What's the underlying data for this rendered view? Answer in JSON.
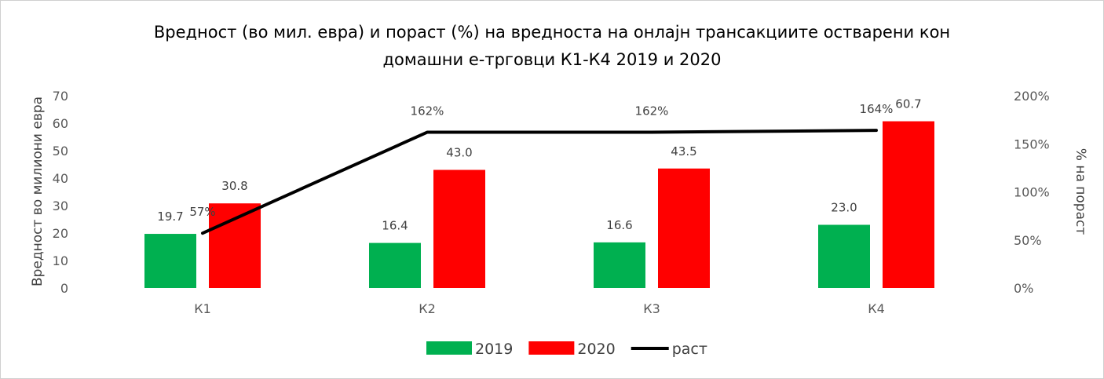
{
  "chart_data": {
    "type": "bar",
    "title_lines": [
      "Вредност (во мил. евра) и пораст (%) на вредноста на онлајн трансакциите остварени кон",
      "домашни е-трговци К1-К4 2019 и 2020"
    ],
    "categories": [
      "К1",
      "К2",
      "К3",
      "К4"
    ],
    "series": [
      {
        "name": "2019",
        "type": "bar",
        "axis": "left",
        "color": "#00b050",
        "values": [
          19.7,
          16.4,
          16.6,
          23.0
        ],
        "labels": [
          "19.7",
          "16.4",
          "16.6",
          "23.0"
        ]
      },
      {
        "name": "2020",
        "type": "bar",
        "axis": "left",
        "color": "#ff0000",
        "values": [
          30.8,
          43.0,
          43.5,
          60.7
        ],
        "labels": [
          "30.8",
          "43.0",
          "43.5",
          "60.7"
        ]
      },
      {
        "name": "раст",
        "type": "line",
        "axis": "right",
        "color": "#000000",
        "values": [
          57,
          162,
          162,
          164
        ],
        "labels": [
          "57%",
          "162%",
          "162%",
          "164%"
        ]
      }
    ],
    "ylabel": "Вредност во милиони евра",
    "y2label": "% на пораст",
    "ylim": [
      0,
      70
    ],
    "y_ticks": [
      "0",
      "10",
      "20",
      "30",
      "40",
      "50",
      "60",
      "70"
    ],
    "y2lim": [
      0,
      200
    ],
    "y2_ticks": [
      "0%",
      "50%",
      "100%",
      "150%",
      "200%"
    ],
    "grid": false,
    "legend_position": "bottom"
  }
}
